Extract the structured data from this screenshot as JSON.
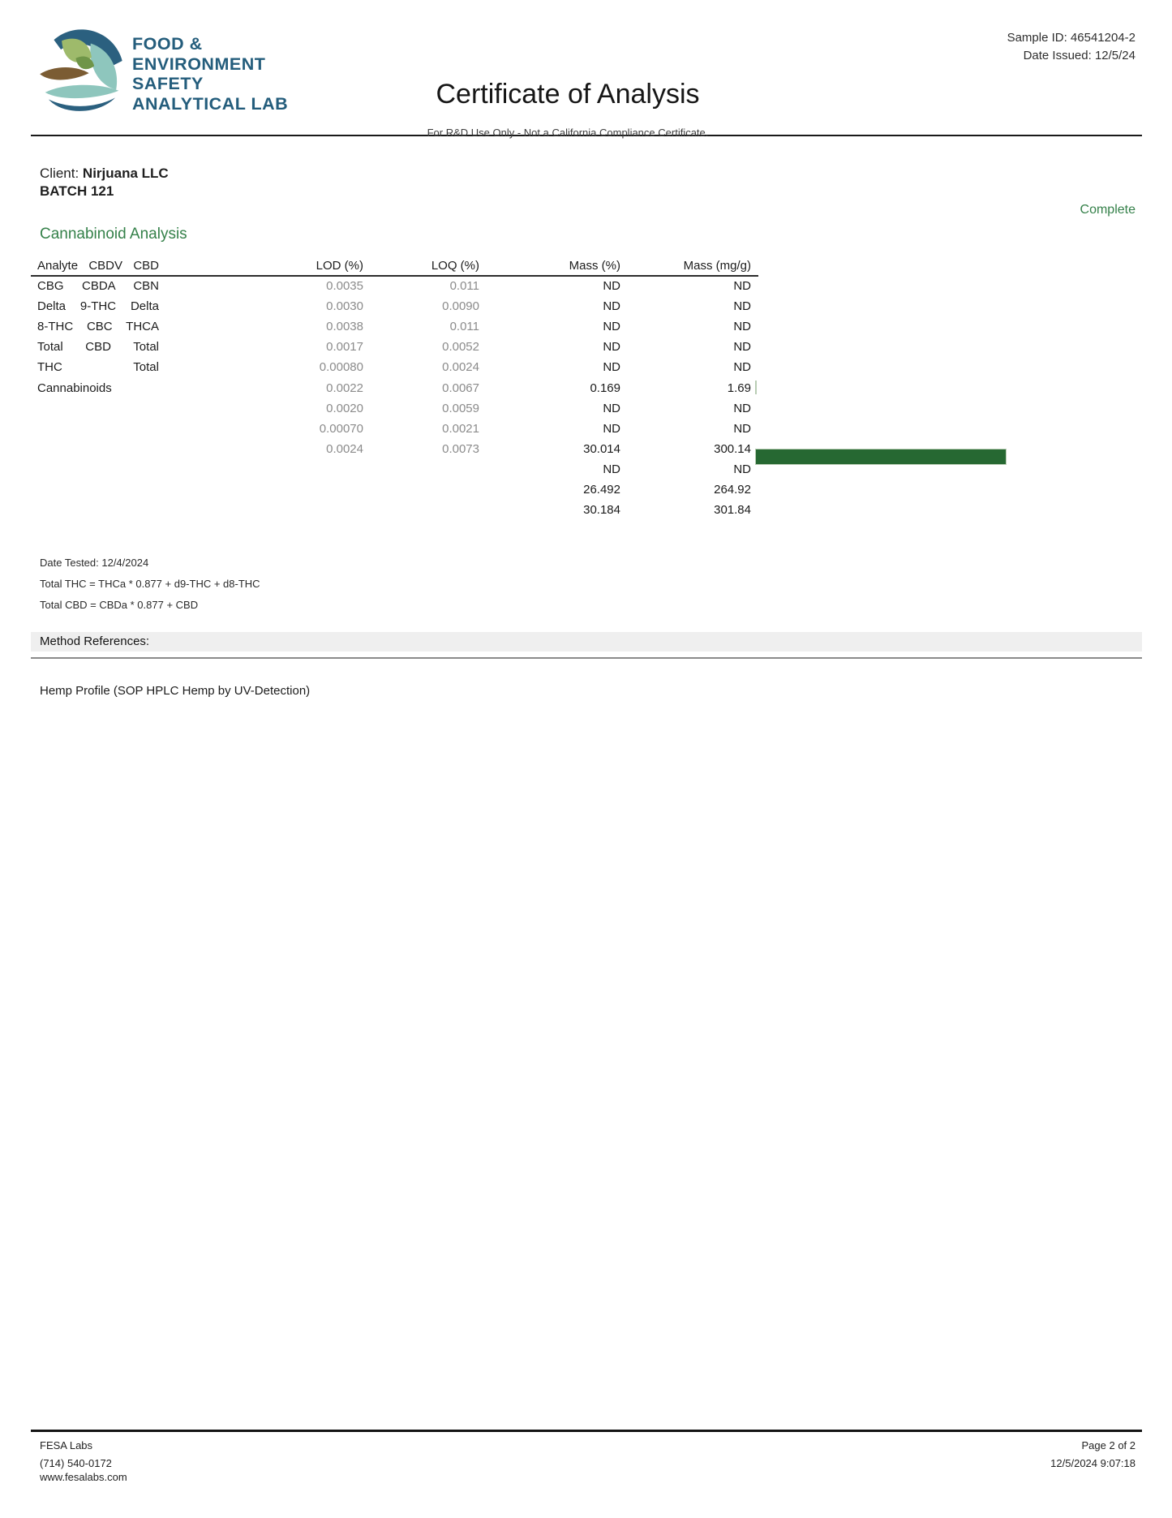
{
  "header": {
    "sample_id": "Sample ID: 46541204-2",
    "date_issued": "Date Issued: 12/5/24",
    "brand_lines": [
      "FOOD &",
      "ENVIRONMENT",
      "SAFETY",
      "ANALYTICAL LAB"
    ],
    "title": "Certificate of Analysis",
    "subtitle": "For R&D Use Only - Not a California Compliance Certificate."
  },
  "client": {
    "label": "Client:",
    "name": "Nirjuana LLC",
    "batch": "BATCH 121"
  },
  "status": "Complete",
  "section_heading": "Cannabinoid Analysis",
  "table": {
    "analyte_lines": [
      "Analyte CBDV CBD",
      "CBG CBDA CBN",
      "Delta 9-THC Delta",
      "8-THC CBC THCA",
      "Total CBD Total",
      "THC Total",
      "Cannabinoids"
    ],
    "lod_header": "LOD (%)",
    "lod_values": [
      "0.0035",
      "0.0030",
      "0.0038",
      "0.0017",
      "0.00080",
      "0.0022",
      "0.0020",
      "0.00070",
      "0.0024"
    ],
    "loq_header": "LOQ (%)",
    "loq_values": [
      "0.011",
      "0.0090",
      "0.011",
      "0.0052",
      "0.0024",
      "0.0067",
      "0.0059",
      "0.0021",
      "0.0073"
    ],
    "mass_pct_header": "Mass (%)",
    "mass_pct_values": [
      "ND",
      "ND",
      "ND",
      "ND",
      "ND",
      "0.169",
      "ND",
      "ND",
      "30.014",
      "ND",
      "26.492",
      "30.184"
    ],
    "mass_mgg_header": "Mass (mg/g)",
    "mass_mgg_values": [
      "ND",
      "ND",
      "ND",
      "ND",
      "ND",
      "1.69",
      "ND",
      "ND",
      "300.14",
      "ND",
      "264.92",
      "301.84"
    ],
    "bars": [
      {
        "line": 6,
        "value": 1.69
      },
      {
        "line": 9,
        "value": 300.14
      }
    ],
    "bar_color": "#266832"
  },
  "notes": {
    "date_tested": "Date Tested: 12/4/2024",
    "formula_thc": "Total THC = THCa * 0.877 + d9-THC + d8-THC",
    "formula_cbd": "Total CBD = CBDa * 0.877 + CBD"
  },
  "method": {
    "heading": "Method References:",
    "profile": "Hemp Profile (SOP HPLC Hemp by UV-Detection)"
  },
  "footer": {
    "lab_name": "FESA Labs",
    "phone": "(714) 540-0172",
    "website": "www.fesalabs.com",
    "page": "Page 2 of 2",
    "timestamp": "12/5/2024 9:07:18"
  },
  "colors": {
    "brand_blue": "#245d7c",
    "heading_green": "#35814a",
    "bar_green": "#266832",
    "muted_gray": "#8b8b8b"
  }
}
